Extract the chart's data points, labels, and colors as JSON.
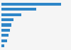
{
  "values": [
    1400,
    820,
    460,
    280,
    240,
    195,
    165,
    130,
    60
  ],
  "bar_color": "#2E86C8",
  "background_color": "#f5f5f5",
  "plot_bg_color": "#f5f5f5",
  "grid_color": "#cccccc",
  "figsize": [
    1.0,
    0.71
  ],
  "dpi": 100,
  "bar_height": 0.55,
  "xlim_max": 1600
}
